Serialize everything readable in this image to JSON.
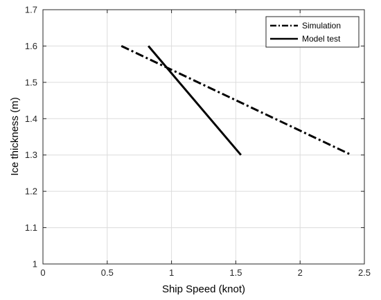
{
  "chart_data": {
    "type": "line",
    "title": "",
    "xlabel": "Ship Speed (knot)",
    "ylabel": "Ice thickness (m)",
    "xlim": [
      0,
      2.5
    ],
    "ylim": [
      1,
      1.7
    ],
    "xticks": [
      "0",
      "0.5",
      "1",
      "1.5",
      "2",
      "2.5"
    ],
    "yticks": [
      "1",
      "1.1",
      "1.2",
      "1.3",
      "1.4",
      "1.5",
      "1.6",
      "1.7"
    ],
    "grid": true,
    "legend_position": "top-right",
    "series": [
      {
        "name": "Simulation",
        "style": "dash-dot",
        "color": "#000000",
        "x": [
          0.61,
          2.4
        ],
        "y": [
          1.6,
          1.3
        ]
      },
      {
        "name": "Model test",
        "style": "solid",
        "color": "#000000",
        "x": [
          0.82,
          1.54
        ],
        "y": [
          1.6,
          1.3
        ]
      }
    ]
  }
}
